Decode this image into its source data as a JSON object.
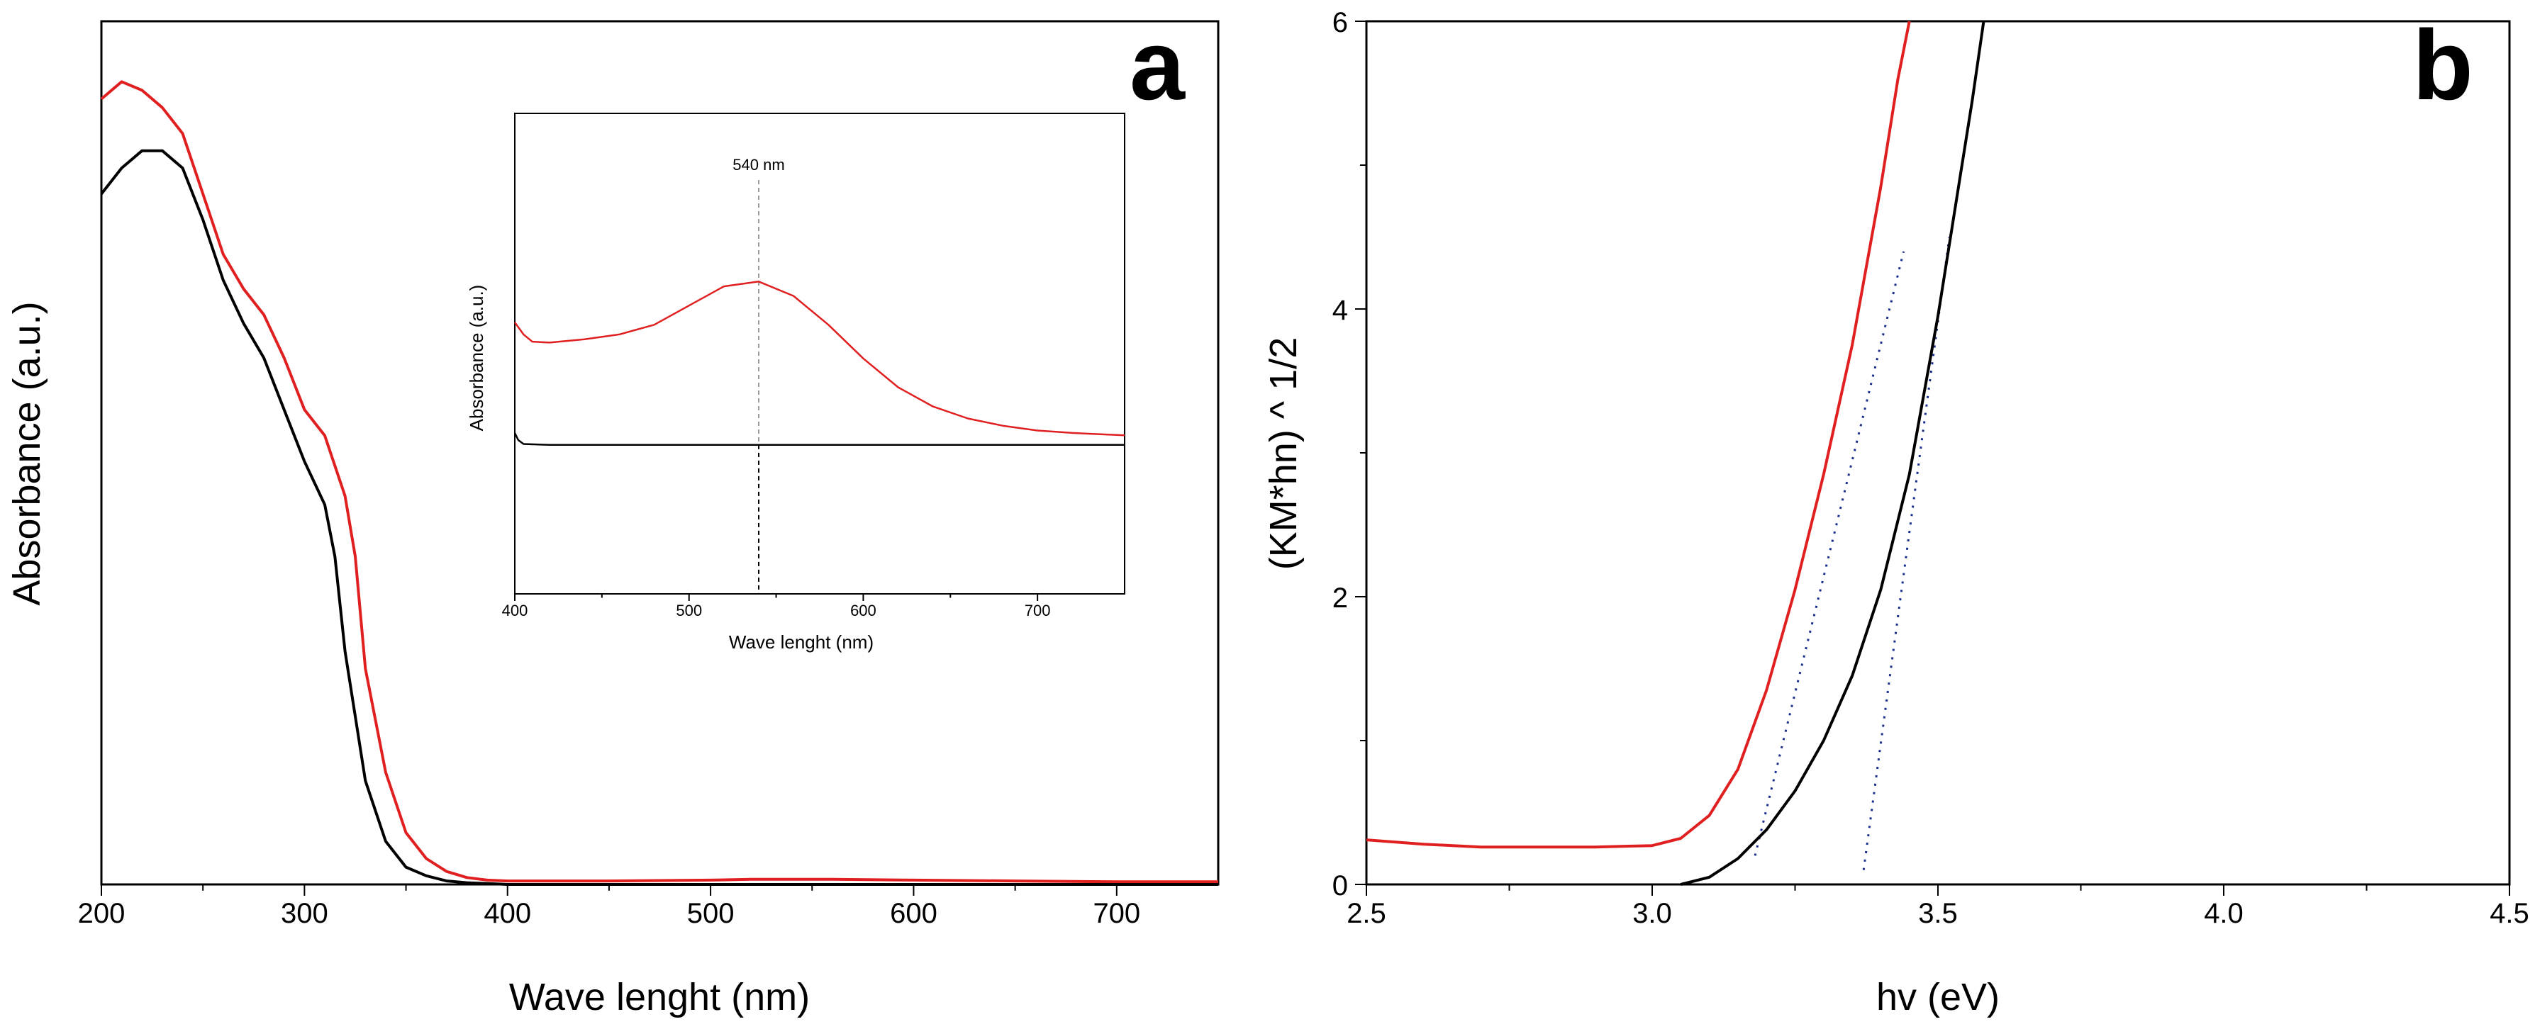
{
  "figure": {
    "colors": {
      "red": "#e02020",
      "black": "#000000",
      "dashed_gray": "#9a9a9a",
      "fit_blue": "#1a2e8c",
      "axis": "#000000"
    }
  },
  "chart_data": [
    {
      "id": "a",
      "type": "line",
      "panel_label": "a",
      "xlabel": "Wave lenght (nm)",
      "ylabel": "Absorbance (a.u.)",
      "xlim": [
        200,
        750
      ],
      "ylim": [
        0,
        1.0
      ],
      "x_ticks": [
        200,
        300,
        400,
        500,
        600,
        700
      ],
      "x_tick_labels": [
        "200",
        "300",
        "400",
        "500",
        "600",
        "700"
      ],
      "y_ticks": [],
      "series": [
        {
          "name": "red",
          "color": "#e02020",
          "x": [
            200,
            210,
            220,
            230,
            240,
            250,
            260,
            270,
            280,
            290,
            300,
            310,
            320,
            325,
            330,
            340,
            350,
            360,
            370,
            380,
            390,
            400,
            450,
            500,
            520,
            540,
            560,
            600,
            650,
            700,
            750
          ],
          "y": [
            0.91,
            0.93,
            0.92,
            0.9,
            0.87,
            0.8,
            0.73,
            0.69,
            0.66,
            0.61,
            0.55,
            0.52,
            0.45,
            0.38,
            0.25,
            0.13,
            0.06,
            0.03,
            0.015,
            0.008,
            0.005,
            0.004,
            0.004,
            0.005,
            0.006,
            0.006,
            0.006,
            0.005,
            0.004,
            0.003,
            0.003
          ]
        },
        {
          "name": "black",
          "color": "#000000",
          "x": [
            200,
            210,
            220,
            230,
            240,
            250,
            260,
            270,
            280,
            290,
            300,
            310,
            315,
            320,
            330,
            340,
            350,
            360,
            370,
            380,
            390,
            400,
            500,
            600,
            700,
            750
          ],
          "y": [
            0.8,
            0.83,
            0.85,
            0.85,
            0.83,
            0.77,
            0.7,
            0.65,
            0.61,
            0.55,
            0.49,
            0.44,
            0.38,
            0.27,
            0.12,
            0.05,
            0.02,
            0.01,
            0.004,
            0.002,
            0.001,
            0.0,
            0.0,
            0.0,
            0.0,
            0.0
          ]
        }
      ],
      "inset": {
        "type": "line",
        "xlabel": "Wave lenght (nm)",
        "ylabel": "Absorbance (a.u.)",
        "xlim": [
          400,
          750
        ],
        "ylim": [
          0,
          1.0
        ],
        "x_ticks": [
          400,
          500,
          600,
          700
        ],
        "x_tick_labels": [
          "400",
          "500",
          "600",
          "700"
        ],
        "annotation": {
          "text": "540 nm",
          "x": 540
        },
        "series": [
          {
            "name": "red",
            "color": "#e02020",
            "x": [
              400,
              405,
              410,
              420,
              440,
              460,
              480,
              500,
              520,
              540,
              560,
              580,
              600,
              620,
              640,
              660,
              680,
              700,
              720,
              750
            ],
            "y": [
              0.565,
              0.54,
              0.525,
              0.523,
              0.53,
              0.54,
              0.56,
              0.6,
              0.64,
              0.65,
              0.62,
              0.56,
              0.49,
              0.43,
              0.39,
              0.365,
              0.35,
              0.34,
              0.335,
              0.33
            ]
          },
          {
            "name": "black",
            "color": "#000000",
            "x": [
              400,
              402,
              405,
              420,
              500,
              600,
              700,
              750
            ],
            "y": [
              0.335,
              0.32,
              0.312,
              0.31,
              0.31,
              0.31,
              0.31,
              0.31
            ]
          }
        ]
      }
    },
    {
      "id": "b",
      "type": "line",
      "panel_label": "b",
      "xlabel": "hv (eV)",
      "ylabel": "(KM*hn) ^ 1/2",
      "xlim": [
        2.5,
        4.5
      ],
      "ylim": [
        0,
        6
      ],
      "x_ticks": [
        2.5,
        3.0,
        3.5,
        4.0,
        4.5
      ],
      "x_tick_labels": [
        "2.5",
        "3.0",
        "3.5",
        "4.0",
        "4.5"
      ],
      "y_ticks": [
        0,
        2,
        4,
        6
      ],
      "y_tick_labels": [
        "0",
        "2",
        "4",
        "6"
      ],
      "series": [
        {
          "name": "red",
          "color": "#e02020",
          "x": [
            2.5,
            2.6,
            2.7,
            2.8,
            2.9,
            3.0,
            3.05,
            3.1,
            3.15,
            3.2,
            3.25,
            3.3,
            3.35,
            3.4,
            3.43,
            3.45
          ],
          "y": [
            0.31,
            0.28,
            0.26,
            0.26,
            0.26,
            0.27,
            0.32,
            0.48,
            0.8,
            1.35,
            2.05,
            2.85,
            3.75,
            4.85,
            5.6,
            6.0
          ]
        },
        {
          "name": "black",
          "color": "#000000",
          "x": [
            3.05,
            3.1,
            3.15,
            3.2,
            3.25,
            3.3,
            3.35,
            3.4,
            3.45,
            3.5,
            3.53,
            3.56,
            3.58
          ],
          "y": [
            0.0,
            0.05,
            0.18,
            0.38,
            0.65,
            1.0,
            1.45,
            2.05,
            2.85,
            3.95,
            4.7,
            5.45,
            6.0
          ]
        }
      ],
      "fit_lines": [
        {
          "name": "red-fit",
          "color": "#1a2e8c",
          "x": [
            3.18,
            3.44
          ],
          "y": [
            0.2,
            4.4
          ]
        },
        {
          "name": "black-fit",
          "color": "#1a2e8c",
          "x": [
            3.37,
            3.52
          ],
          "y": [
            0.1,
            4.5
          ]
        }
      ]
    }
  ]
}
